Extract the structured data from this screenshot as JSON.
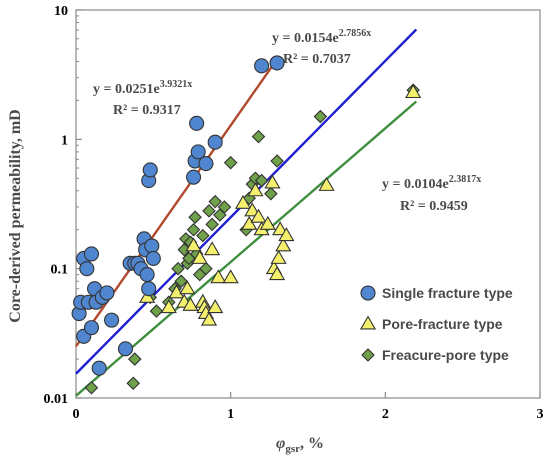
{
  "chart_data": {
    "type": "scatter",
    "xlabel": "φgsr, %",
    "ylabel": "Core-derived permeability, mD",
    "xlim": [
      0,
      3
    ],
    "ylim": [
      0.01,
      10
    ],
    "yscale": "log",
    "x_ticks": [
      "0",
      "1",
      "2",
      "3"
    ],
    "y_ticks": [
      "0.01",
      "0.1",
      "1",
      "10"
    ],
    "grid": false,
    "legend_position": "bottom-right",
    "series": [
      {
        "name": "Single fracture type",
        "marker": "circle",
        "color": "#4f86cf",
        "trend_color": "#b14a2d",
        "equation": "y = 0.0251e",
        "exponent": "3.9321x",
        "r2": "R² = 0.9317",
        "fit": {
          "a": 0.0251,
          "b": 3.9321,
          "x_range": [
            0,
            1.3
          ]
        },
        "points": [
          [
            0.02,
            0.045
          ],
          [
            0.03,
            0.055
          ],
          [
            0.05,
            0.03
          ],
          [
            0.05,
            0.12
          ],
          [
            0.07,
            0.1
          ],
          [
            0.08,
            0.055
          ],
          [
            0.1,
            0.035
          ],
          [
            0.1,
            0.13
          ],
          [
            0.12,
            0.07
          ],
          [
            0.13,
            0.055
          ],
          [
            0.15,
            0.017
          ],
          [
            0.17,
            0.06
          ],
          [
            0.2,
            0.065
          ],
          [
            0.23,
            0.04
          ],
          [
            0.32,
            0.024
          ],
          [
            0.35,
            0.11
          ],
          [
            0.38,
            0.11
          ],
          [
            0.4,
            0.11
          ],
          [
            0.42,
            0.1
          ],
          [
            0.44,
            0.17
          ],
          [
            0.45,
            0.14
          ],
          [
            0.46,
            0.09
          ],
          [
            0.47,
            0.07
          ],
          [
            0.47,
            0.48
          ],
          [
            0.48,
            0.58
          ],
          [
            0.49,
            0.15
          ],
          [
            0.5,
            0.12
          ],
          [
            0.76,
            0.51
          ],
          [
            0.77,
            0.68
          ],
          [
            0.78,
            1.33
          ],
          [
            0.79,
            0.8
          ],
          [
            0.84,
            0.65
          ],
          [
            0.9,
            0.95
          ],
          [
            1.2,
            3.7
          ],
          [
            1.3,
            3.9
          ]
        ]
      },
      {
        "name": "Pore-fracture type",
        "marker": "triangle",
        "color": "#f4f06e",
        "equation": "y = 0.0154e",
        "exponent": "2.7856x",
        "r2": "R² = 0.7037",
        "trend_color": "#1f1fd0",
        "fit": {
          "a": 0.0154,
          "b": 2.7856,
          "x_range": [
            0,
            2.2
          ]
        },
        "points": [
          [
            0.46,
            0.06
          ],
          [
            0.6,
            0.05
          ],
          [
            0.65,
            0.065
          ],
          [
            0.7,
            0.055
          ],
          [
            0.72,
            0.07
          ],
          [
            0.74,
            0.052
          ],
          [
            0.76,
            0.15
          ],
          [
            0.8,
            0.12
          ],
          [
            0.82,
            0.055
          ],
          [
            0.83,
            0.05
          ],
          [
            0.84,
            0.045
          ],
          [
            0.86,
            0.04
          ],
          [
            0.88,
            0.14
          ],
          [
            0.9,
            0.05
          ],
          [
            0.92,
            0.085
          ],
          [
            1.0,
            0.085
          ],
          [
            1.08,
            0.32
          ],
          [
            1.12,
            0.22
          ],
          [
            1.14,
            0.28
          ],
          [
            1.16,
            0.4
          ],
          [
            1.18,
            0.25
          ],
          [
            1.2,
            0.2
          ],
          [
            1.24,
            0.22
          ],
          [
            1.27,
            0.46
          ],
          [
            1.28,
            0.1
          ],
          [
            1.3,
            0.09
          ],
          [
            1.31,
            0.12
          ],
          [
            1.32,
            0.2
          ],
          [
            1.34,
            0.15
          ],
          [
            1.36,
            0.18
          ],
          [
            1.62,
            0.44
          ],
          [
            2.18,
            2.3
          ]
        ]
      },
      {
        "name": "Freacure-pore type",
        "marker": "diamond",
        "color": "#6fa04a",
        "equation": "y = 0.0104e",
        "exponent": "2.3817x",
        "r2": "R² = 0.9459",
        "trend_color": "#3f8f3f",
        "fit": {
          "a": 0.0104,
          "b": 2.3817,
          "x_range": [
            0,
            2.2
          ]
        },
        "points": [
          [
            0.1,
            0.012
          ],
          [
            0.37,
            0.013
          ],
          [
            0.38,
            0.02
          ],
          [
            0.48,
            0.06
          ],
          [
            0.52,
            0.047
          ],
          [
            0.6,
            0.055
          ],
          [
            0.64,
            0.07
          ],
          [
            0.66,
            0.1
          ],
          [
            0.68,
            0.08
          ],
          [
            0.7,
            0.14
          ],
          [
            0.71,
            0.17
          ],
          [
            0.72,
            0.11
          ],
          [
            0.73,
            0.12
          ],
          [
            0.74,
            0.16
          ],
          [
            0.76,
            0.2
          ],
          [
            0.77,
            0.25
          ],
          [
            0.78,
            0.13
          ],
          [
            0.8,
            0.09
          ],
          [
            0.82,
            0.18
          ],
          [
            0.84,
            0.1
          ],
          [
            0.86,
            0.28
          ],
          [
            0.88,
            0.22
          ],
          [
            0.9,
            0.33
          ],
          [
            0.93,
            0.26
          ],
          [
            0.96,
            0.3
          ],
          [
            1.0,
            0.66
          ],
          [
            1.1,
            0.2
          ],
          [
            1.12,
            0.35
          ],
          [
            1.14,
            0.45
          ],
          [
            1.16,
            0.5
          ],
          [
            1.18,
            1.05
          ],
          [
            1.2,
            0.48
          ],
          [
            1.26,
            0.38
          ],
          [
            1.3,
            0.68
          ],
          [
            1.58,
            1.5
          ],
          [
            2.18,
            2.4
          ]
        ]
      }
    ]
  }
}
